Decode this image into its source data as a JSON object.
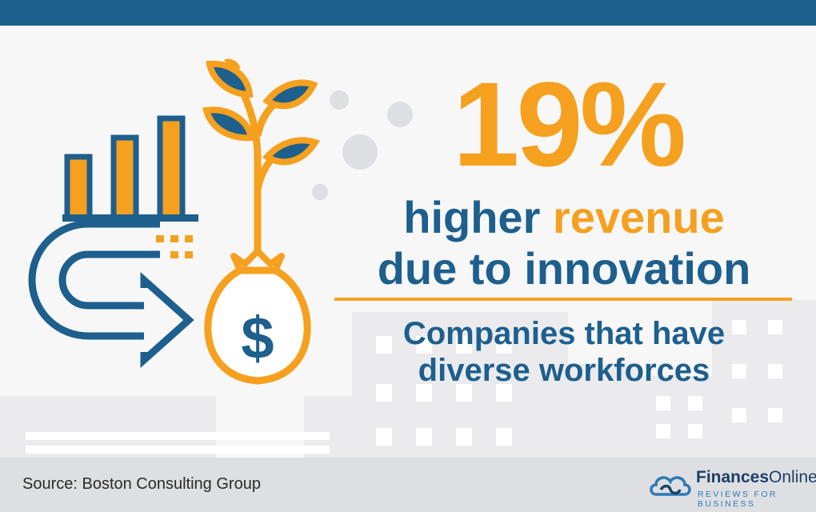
{
  "stat": {
    "value": "19%"
  },
  "headline": {
    "line1_a": "higher",
    "line1_b": "revenue",
    "line2": "due to innovation"
  },
  "subtext": {
    "line1": "Companies that have",
    "line2": "diverse workforces"
  },
  "footer": {
    "source": "Source: Boston Consulting Group"
  },
  "logo": {
    "name_bold": "Finances",
    "name_light": "Online",
    "tagline": "REVIEWS FOR BUSINESS"
  },
  "icons": {
    "chart": "bar-chart-icon",
    "plant": "sprout-icon",
    "bag": "money-bag-icon",
    "arrow": "u-turn-arrow-icon",
    "cloud": "cloud-logo-icon"
  },
  "colors": {
    "blue": "#1d5f8d",
    "orange": "#f5a01e",
    "footer_bg": "#dedfe3"
  }
}
